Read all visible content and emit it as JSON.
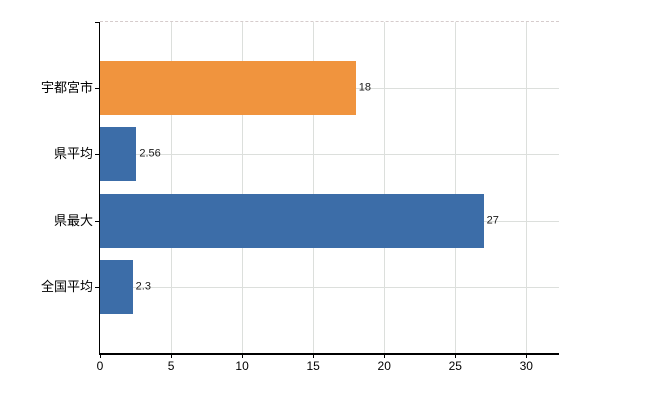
{
  "chart_data": {
    "type": "bar",
    "orientation": "horizontal",
    "title": "",
    "categories": [
      "宇都宮市",
      "県平均",
      "県最大",
      "全国平均"
    ],
    "values": [
      18,
      2.56,
      27,
      2.3
    ],
    "value_labels": [
      "18",
      "2.56",
      "27",
      "2.3"
    ],
    "bar_colors": [
      "#f0943e",
      "#3c6da8",
      "#3c6da8",
      "#3c6da8"
    ],
    "xticks": [
      "0",
      "5",
      "10",
      "15",
      "20",
      "25",
      "30"
    ],
    "xtick_values": [
      0,
      5,
      10,
      15,
      20,
      25,
      30
    ],
    "xlim": [
      0,
      32.3
    ],
    "grid": true,
    "legend": "none",
    "colors": {
      "orange": "#f0943e",
      "blue": "#3c6da8",
      "gridline": "#dcdfdc",
      "axis": "#000000",
      "background": "#ffffff"
    }
  }
}
